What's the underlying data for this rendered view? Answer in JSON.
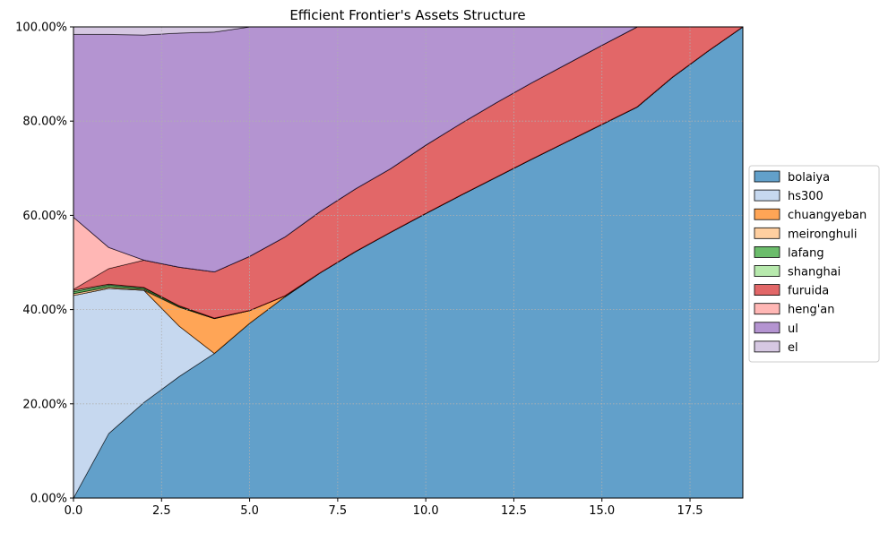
{
  "chart_data": {
    "type": "area",
    "stacked": true,
    "title": "Efficient Frontier's Assets Structure",
    "xlabel": "",
    "ylabel": "",
    "xlim": [
      0,
      19
    ],
    "ylim": [
      0,
      1
    ],
    "xticks": [
      0,
      2.5,
      5,
      7.5,
      10,
      12.5,
      15,
      17.5
    ],
    "xtick_labels": [
      "0.0",
      "2.5",
      "5.0",
      "7.5",
      "10.0",
      "12.5",
      "15.0",
      "17.5"
    ],
    "yticks": [
      0,
      0.2,
      0.4,
      0.6,
      0.8,
      1.0
    ],
    "ytick_labels": [
      "0.00%",
      "20.00%",
      "40.00%",
      "60.00%",
      "80.00%",
      "100.00%"
    ],
    "grid": true,
    "legend_position": "right-outside",
    "x": [
      0,
      1,
      2,
      3,
      4,
      5,
      6,
      7,
      8,
      9,
      10,
      11,
      12,
      13,
      14,
      15,
      16,
      17,
      18,
      19
    ],
    "series": [
      {
        "name": "bolaiya",
        "color": "#1f77b4",
        "values": [
          0.0,
          0.137,
          0.203,
          0.258,
          0.307,
          0.371,
          0.427,
          0.478,
          0.523,
          0.564,
          0.604,
          0.643,
          0.681,
          0.719,
          0.756,
          0.793,
          0.83,
          0.893,
          0.948,
          1.0
        ]
      },
      {
        "name": "hs300",
        "color": "#aec7e8",
        "values": [
          0.43,
          0.308,
          0.238,
          0.107,
          0.0,
          0.0,
          0.0,
          0.0,
          0.0,
          0.0,
          0.0,
          0.0,
          0.0,
          0.0,
          0.0,
          0.0,
          0.0,
          0.0,
          0.0,
          0.0
        ]
      },
      {
        "name": "chuangyeban",
        "color": "#ff7f0e",
        "values": [
          0.0,
          0.0,
          0.0,
          0.04,
          0.074,
          0.027,
          0.002,
          0.0,
          0.0,
          0.0,
          0.0,
          0.0,
          0.0,
          0.0,
          0.0,
          0.0,
          0.0,
          0.0,
          0.0,
          0.0
        ]
      },
      {
        "name": "meironghuli",
        "color": "#ffbb78",
        "values": [
          0.004,
          0.003,
          0.002,
          0.001,
          0.0,
          0.0,
          0.0,
          0.0,
          0.0,
          0.0,
          0.0,
          0.0,
          0.0,
          0.0,
          0.0,
          0.0,
          0.0,
          0.0,
          0.0,
          0.0
        ]
      },
      {
        "name": "lafang",
        "color": "#2ca02c",
        "values": [
          0.004,
          0.004,
          0.003,
          0.002,
          0.001,
          0.0,
          0.0,
          0.0,
          0.0,
          0.0,
          0.0,
          0.0,
          0.0,
          0.0,
          0.0,
          0.0,
          0.0,
          0.0,
          0.0,
          0.0
        ]
      },
      {
        "name": "shanghai",
        "color": "#98df8a",
        "values": [
          0.003,
          0.002,
          0.001,
          0.0,
          0.0,
          0.0,
          0.0,
          0.0,
          0.0,
          0.0,
          0.0,
          0.0,
          0.0,
          0.0,
          0.0,
          0.0,
          0.0,
          0.0,
          0.0,
          0.0
        ]
      },
      {
        "name": "furuida",
        "color": "#d62728",
        "values": [
          0.002,
          0.033,
          0.058,
          0.082,
          0.098,
          0.115,
          0.125,
          0.13,
          0.133,
          0.135,
          0.145,
          0.152,
          0.158,
          0.162,
          0.165,
          0.168,
          0.17,
          0.107,
          0.052,
          0.0
        ]
      },
      {
        "name": "heng'an",
        "color": "#ff9896",
        "values": [
          0.153,
          0.045,
          0.0,
          0.0,
          0.0,
          0.0,
          0.0,
          0.0,
          0.0,
          0.0,
          0.0,
          0.0,
          0.0,
          0.0,
          0.0,
          0.0,
          0.0,
          0.0,
          0.0,
          0.0
        ]
      },
      {
        "name": "ul",
        "color": "#9467bd",
        "values": [
          0.388,
          0.452,
          0.478,
          0.497,
          0.509,
          0.487,
          0.446,
          0.392,
          0.344,
          0.301,
          0.251,
          0.205,
          0.161,
          0.119,
          0.079,
          0.039,
          0.0,
          0.0,
          0.0,
          0.0
        ]
      },
      {
        "name": "el",
        "color": "#c5b0d5",
        "values": [
          0.016,
          0.016,
          0.017,
          0.013,
          0.011,
          0.0,
          0.0,
          0.0,
          0.0,
          0.0,
          0.0,
          0.0,
          0.0,
          0.0,
          0.0,
          0.0,
          0.0,
          0.0,
          0.0,
          0.0
        ]
      }
    ]
  }
}
